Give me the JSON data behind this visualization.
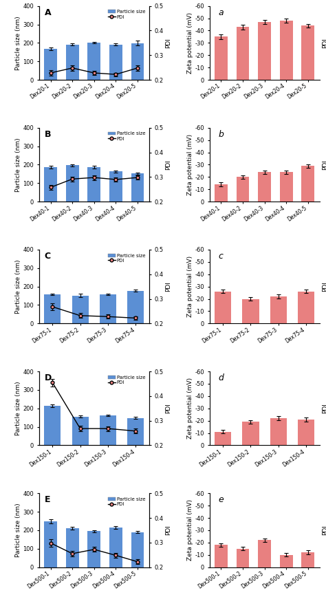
{
  "panels": [
    {
      "label": "A",
      "categories": [
        "Dex20-1",
        "Dex20-2",
        "Dex20-3",
        "Dex20-4",
        "Dex20-5"
      ],
      "bar_values": [
        168,
        191,
        201,
        192,
        199
      ],
      "bar_errors": [
        8,
        5,
        4,
        4,
        12
      ],
      "pdi_values": [
        0.228,
        0.248,
        0.228,
        0.222,
        0.248
      ],
      "pdi_errors": [
        0.01,
        0.012,
        0.008,
        0.007,
        0.012
      ],
      "ylim_left": [
        0,
        400
      ],
      "ylim_right": [
        0.2,
        0.5
      ],
      "yticks_left": [
        0,
        100,
        200,
        300,
        400
      ],
      "yticks_right": [
        0.2,
        0.3,
        0.4,
        0.5
      ]
    },
    {
      "label": "B",
      "categories": [
        "Dex40-1",
        "Dex40-2",
        "Dex40-3",
        "Dex40-4",
        "Dex40-5"
      ],
      "bar_values": [
        188,
        197,
        188,
        163,
        152
      ],
      "bar_errors": [
        8,
        5,
        8,
        5,
        5
      ],
      "pdi_values": [
        0.258,
        0.292,
        0.298,
        0.29,
        0.298
      ],
      "pdi_errors": [
        0.01,
        0.01,
        0.01,
        0.008,
        0.008
      ],
      "ylim_left": [
        0,
        400
      ],
      "ylim_right": [
        0.2,
        0.5
      ],
      "yticks_left": [
        0,
        100,
        200,
        300,
        400
      ],
      "yticks_right": [
        0.2,
        0.3,
        0.4,
        0.5
      ]
    },
    {
      "label": "C",
      "categories": [
        "Dex75-1",
        "Dex75-2",
        "Dex75-3",
        "Dex75-4"
      ],
      "bar_values": [
        158,
        152,
        158,
        178
      ],
      "bar_errors": [
        5,
        10,
        4,
        6
      ],
      "pdi_values": [
        0.268,
        0.232,
        0.228,
        0.222
      ],
      "pdi_errors": [
        0.015,
        0.01,
        0.008,
        0.008
      ],
      "ylim_left": [
        0,
        400
      ],
      "ylim_right": [
        0.2,
        0.5
      ],
      "yticks_left": [
        0,
        100,
        200,
        300,
        400
      ],
      "yticks_right": [
        0.2,
        0.3,
        0.4,
        0.5
      ]
    },
    {
      "label": "D",
      "categories": [
        "Dex150-1",
        "Dex150-2",
        "Dex150-3",
        "Dex150-4"
      ],
      "bar_values": [
        215,
        155,
        162,
        148
      ],
      "bar_errors": [
        8,
        6,
        5,
        5
      ],
      "pdi_values": [
        0.455,
        0.268,
        0.268,
        0.258
      ],
      "pdi_errors": [
        0.015,
        0.012,
        0.01,
        0.01
      ],
      "ylim_left": [
        0,
        400
      ],
      "ylim_right": [
        0.2,
        0.5
      ],
      "yticks_left": [
        0,
        100,
        200,
        300,
        400
      ],
      "yticks_right": [
        0.2,
        0.3,
        0.4,
        0.5
      ]
    },
    {
      "label": "E",
      "categories": [
        "Dex500-1",
        "Dex500-2",
        "Dex500-3",
        "Dex500-4",
        "Dex500-5"
      ],
      "bar_values": [
        248,
        210,
        195,
        215,
        190
      ],
      "bar_errors": [
        10,
        8,
        6,
        8,
        6
      ],
      "pdi_values": [
        0.298,
        0.255,
        0.272,
        0.248,
        0.222
      ],
      "pdi_errors": [
        0.015,
        0.012,
        0.01,
        0.01,
        0.01
      ],
      "ylim_left": [
        0,
        400
      ],
      "ylim_right": [
        0.2,
        0.5
      ],
      "yticks_left": [
        0,
        100,
        200,
        300,
        400
      ],
      "yticks_right": [
        0.2,
        0.3,
        0.4,
        0.5
      ]
    }
  ],
  "zeta_panels": [
    {
      "label": "a",
      "categories": [
        "Dex20-1",
        "Dex20-2",
        "Dex20-3",
        "Dex20-4",
        "Dex20-5"
      ],
      "bar_values": [
        35,
        43,
        47,
        48,
        44
      ],
      "bar_errors": [
        2,
        2,
        1.5,
        1.5,
        1.5
      ],
      "ylim": [
        0,
        60
      ],
      "yticks": [
        0,
        10,
        20,
        30,
        40,
        50,
        60
      ],
      "yticklabels": [
        "0",
        "-10",
        "-20",
        "-30",
        "-40",
        "-50",
        "-60"
      ]
    },
    {
      "label": "b",
      "categories": [
        "Dex40-1",
        "Dex40-2",
        "Dex40-3",
        "Dex40-4",
        "Dex40-5"
      ],
      "bar_values": [
        14,
        20,
        24,
        24,
        29
      ],
      "bar_errors": [
        1.5,
        1.5,
        1.5,
        1.5,
        1.5
      ],
      "ylim": [
        0,
        60
      ],
      "yticks": [
        0,
        10,
        20,
        30,
        40,
        50,
        60
      ],
      "yticklabels": [
        "0",
        "-10",
        "-20",
        "-30",
        "-40",
        "-50",
        "-60"
      ]
    },
    {
      "label": "c",
      "categories": [
        "Dex75-1",
        "Dex75-2",
        "Dex75-3",
        "Dex75-4"
      ],
      "bar_values": [
        26,
        20,
        22,
        26
      ],
      "bar_errors": [
        1.5,
        1.5,
        1.5,
        1.5
      ],
      "ylim": [
        0,
        60
      ],
      "yticks": [
        0,
        10,
        20,
        30,
        40,
        50,
        60
      ],
      "yticklabels": [
        "0",
        "-10",
        "-20",
        "-30",
        "-40",
        "-50",
        "-60"
      ]
    },
    {
      "label": "d",
      "categories": [
        "Dex150-1",
        "Dex150-2",
        "Dex150-3",
        "Dex150-4"
      ],
      "bar_values": [
        11,
        19,
        22,
        21
      ],
      "bar_errors": [
        1.5,
        1.5,
        1.5,
        1.5
      ],
      "ylim": [
        0,
        60
      ],
      "yticks": [
        0,
        10,
        20,
        30,
        40,
        50,
        60
      ],
      "yticklabels": [
        "0",
        "-10",
        "-20",
        "-30",
        "-40",
        "-50",
        "-60"
      ]
    },
    {
      "label": "e",
      "categories": [
        "Dex500-1",
        "Dex500-2",
        "Dex500-3",
        "Dex500-4",
        "Dex500-5"
      ],
      "bar_values": [
        18,
        15,
        22,
        10,
        12
      ],
      "bar_errors": [
        1.5,
        1.5,
        1.5,
        1.5,
        1.5
      ],
      "ylim": [
        0,
        60
      ],
      "yticks": [
        0,
        10,
        20,
        30,
        40,
        50,
        60
      ],
      "yticklabels": [
        "0",
        "-10",
        "-20",
        "-30",
        "-40",
        "-50",
        "-60"
      ]
    }
  ],
  "bar_color": "#5B8FD4",
  "zeta_bar_color": "#E88080",
  "pdi_line_color": "black",
  "pdi_marker_color": "#E88080",
  "background_color": "white"
}
